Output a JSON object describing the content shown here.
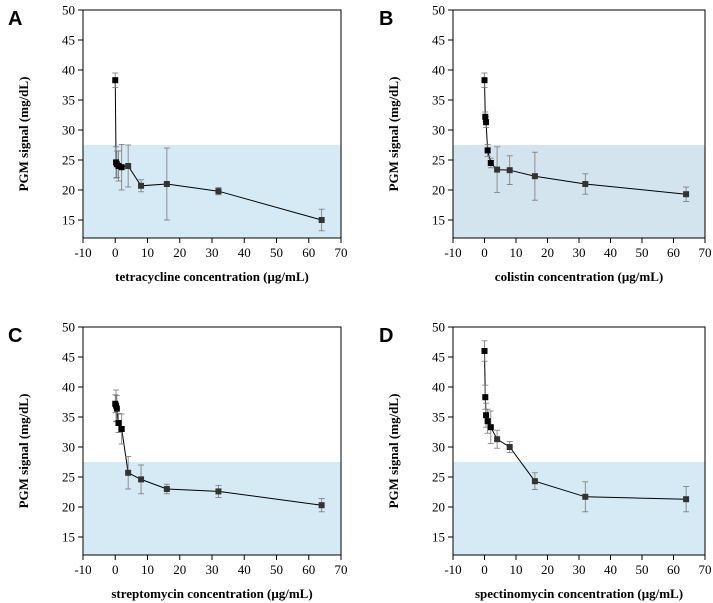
{
  "chart_data": [
    {
      "type": "scatter",
      "panel": "A",
      "title": "",
      "xlabel": "tetracycline concentration (μg/mL)",
      "ylabel": "PGM signal (mg/dL)",
      "xlim": [
        -10,
        70
      ],
      "ylim": [
        12,
        50
      ],
      "xticks": [
        -10,
        0,
        10,
        20,
        30,
        40,
        50,
        60,
        70
      ],
      "yticks": [
        15,
        20,
        25,
        30,
        35,
        40,
        45,
        50
      ],
      "shaded_band": [
        12,
        27.5
      ],
      "band_color": "#d6eaf5",
      "grid": false,
      "series": [
        {
          "name": "tetracycline",
          "color": "#000000",
          "x": [
            0,
            0.25,
            0.5,
            1,
            2,
            4,
            8,
            16,
            32,
            64
          ],
          "y": [
            38.3,
            24.6,
            24.3,
            24.0,
            23.8,
            24.0,
            20.7,
            21.0,
            19.8,
            15.0
          ],
          "err": [
            1.2,
            2.6,
            2.2,
            2.5,
            3.8,
            3.5,
            1.0,
            6.0,
            0.6,
            1.8
          ]
        }
      ]
    },
    {
      "type": "scatter",
      "panel": "B",
      "title": "",
      "xlabel": "colistin concentration (μg/mL)",
      "ylabel": "PGM signal (mg/dL)",
      "xlim": [
        -10,
        70
      ],
      "ylim": [
        12,
        50
      ],
      "xticks": [
        -10,
        0,
        10,
        20,
        30,
        40,
        50,
        60,
        70
      ],
      "yticks": [
        15,
        20,
        25,
        30,
        35,
        40,
        45,
        50
      ],
      "shaded_band": [
        12,
        27.5
      ],
      "band_color": "#d3e4ee",
      "grid": false,
      "series": [
        {
          "name": "colistin",
          "color": "#000000",
          "x": [
            0,
            0.25,
            0.5,
            1,
            2,
            4,
            8,
            16,
            32,
            64
          ],
          "y": [
            38.3,
            32.2,
            31.3,
            26.6,
            24.5,
            23.4,
            23.3,
            22.3,
            21.0,
            19.3
          ],
          "err": [
            1.2,
            0.8,
            0.9,
            1.0,
            0.8,
            3.8,
            2.4,
            4.0,
            1.7,
            1.2
          ]
        }
      ]
    },
    {
      "type": "scatter",
      "panel": "C",
      "title": "",
      "xlabel": "streptomycin concentration (μg/mL)",
      "ylabel": "PGM signal (mg/dL)",
      "xlim": [
        -10,
        70
      ],
      "ylim": [
        12,
        50
      ],
      "xticks": [
        -10,
        0,
        10,
        20,
        30,
        40,
        50,
        60,
        70
      ],
      "yticks": [
        15,
        20,
        25,
        30,
        35,
        40,
        45,
        50
      ],
      "shaded_band": [
        12,
        27.5
      ],
      "band_color": "#d6eaf5",
      "grid": false,
      "series": [
        {
          "name": "streptomycin",
          "color": "#000000",
          "x": [
            0,
            0.25,
            0.5,
            1,
            2,
            4,
            8,
            16,
            32,
            64
          ],
          "y": [
            37.2,
            36.9,
            36.4,
            34.0,
            33.0,
            25.7,
            24.6,
            23.0,
            22.6,
            20.3
          ],
          "err": [
            1.5,
            2.6,
            2.2,
            1.6,
            2.5,
            2.7,
            2.4,
            0.8,
            1.0,
            1.1
          ]
        }
      ]
    },
    {
      "type": "scatter",
      "panel": "D",
      "title": "",
      "xlabel": "spectinomycin concentration (μg/mL)",
      "ylabel": "PGM signal (mg/dL)",
      "xlim": [
        -10,
        70
      ],
      "ylim": [
        12,
        50
      ],
      "xticks": [
        -10,
        0,
        10,
        20,
        30,
        40,
        50,
        60,
        70
      ],
      "yticks": [
        15,
        20,
        25,
        30,
        35,
        40,
        45,
        50
      ],
      "shaded_band": [
        12,
        27.5
      ],
      "band_color": "#d6eaf5",
      "grid": false,
      "series": [
        {
          "name": "spectinomycin",
          "color": "#000000",
          "x": [
            0,
            0.25,
            0.5,
            1,
            2,
            4,
            8,
            16,
            32,
            64
          ],
          "y": [
            46.0,
            38.3,
            35.3,
            34.3,
            33.3,
            31.3,
            30.0,
            24.3,
            21.7,
            21.3
          ],
          "err": [
            1.7,
            2.0,
            2.0,
            2.0,
            2.7,
            1.5,
            0.9,
            1.4,
            2.5,
            2.1
          ]
        }
      ]
    }
  ]
}
